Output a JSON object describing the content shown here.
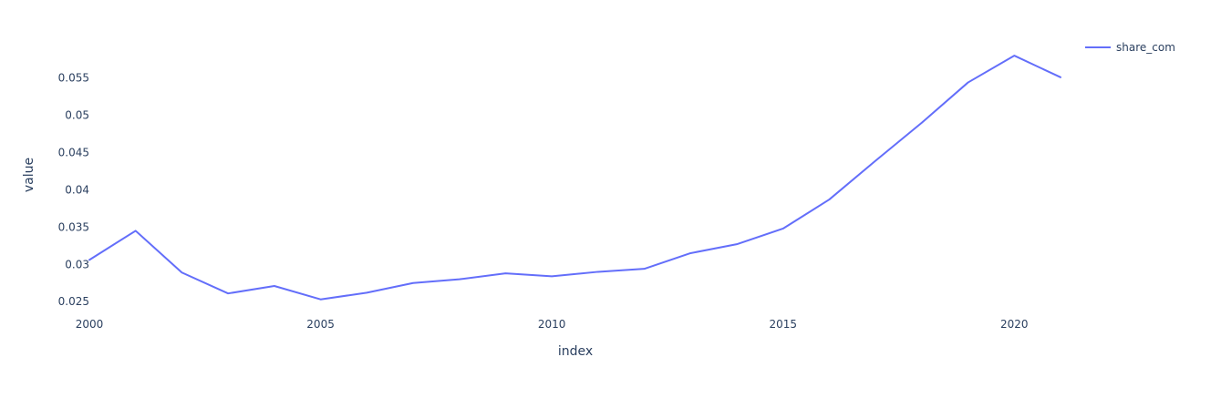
{
  "chart_data": {
    "type": "line",
    "title": "",
    "xlabel": "index",
    "ylabel": "value",
    "xlim": [
      2000,
      2021
    ],
    "ylim": [
      0.0238,
      0.0596
    ],
    "x_ticks": [
      2000,
      2005,
      2010,
      2015,
      2020
    ],
    "x_tick_labels": [
      "2000",
      "2005",
      "2010",
      "2015",
      "2020"
    ],
    "y_ticks": [
      0.025,
      0.03,
      0.035,
      0.04,
      0.045,
      0.05,
      0.055
    ],
    "y_tick_labels": [
      "0.025",
      "0.03",
      "0.035",
      "0.04",
      "0.045",
      "0.05",
      "0.055"
    ],
    "grid": false,
    "legend_position": "top-right",
    "x": [
      2000,
      2001,
      2002,
      2003,
      2004,
      2005,
      2006,
      2007,
      2008,
      2009,
      2010,
      2011,
      2012,
      2013,
      2014,
      2015,
      2016,
      2017,
      2018,
      2019,
      2020,
      2021
    ],
    "series": [
      {
        "name": "share_com",
        "color": "#636efa",
        "values": [
          0.0306,
          0.0345,
          0.0289,
          0.0261,
          0.0271,
          0.0253,
          0.0262,
          0.0275,
          0.028,
          0.0288,
          0.0284,
          0.029,
          0.0294,
          0.0315,
          0.0327,
          0.0348,
          0.0387,
          0.0439,
          0.049,
          0.0544,
          0.058,
          0.0551
        ]
      }
    ]
  }
}
